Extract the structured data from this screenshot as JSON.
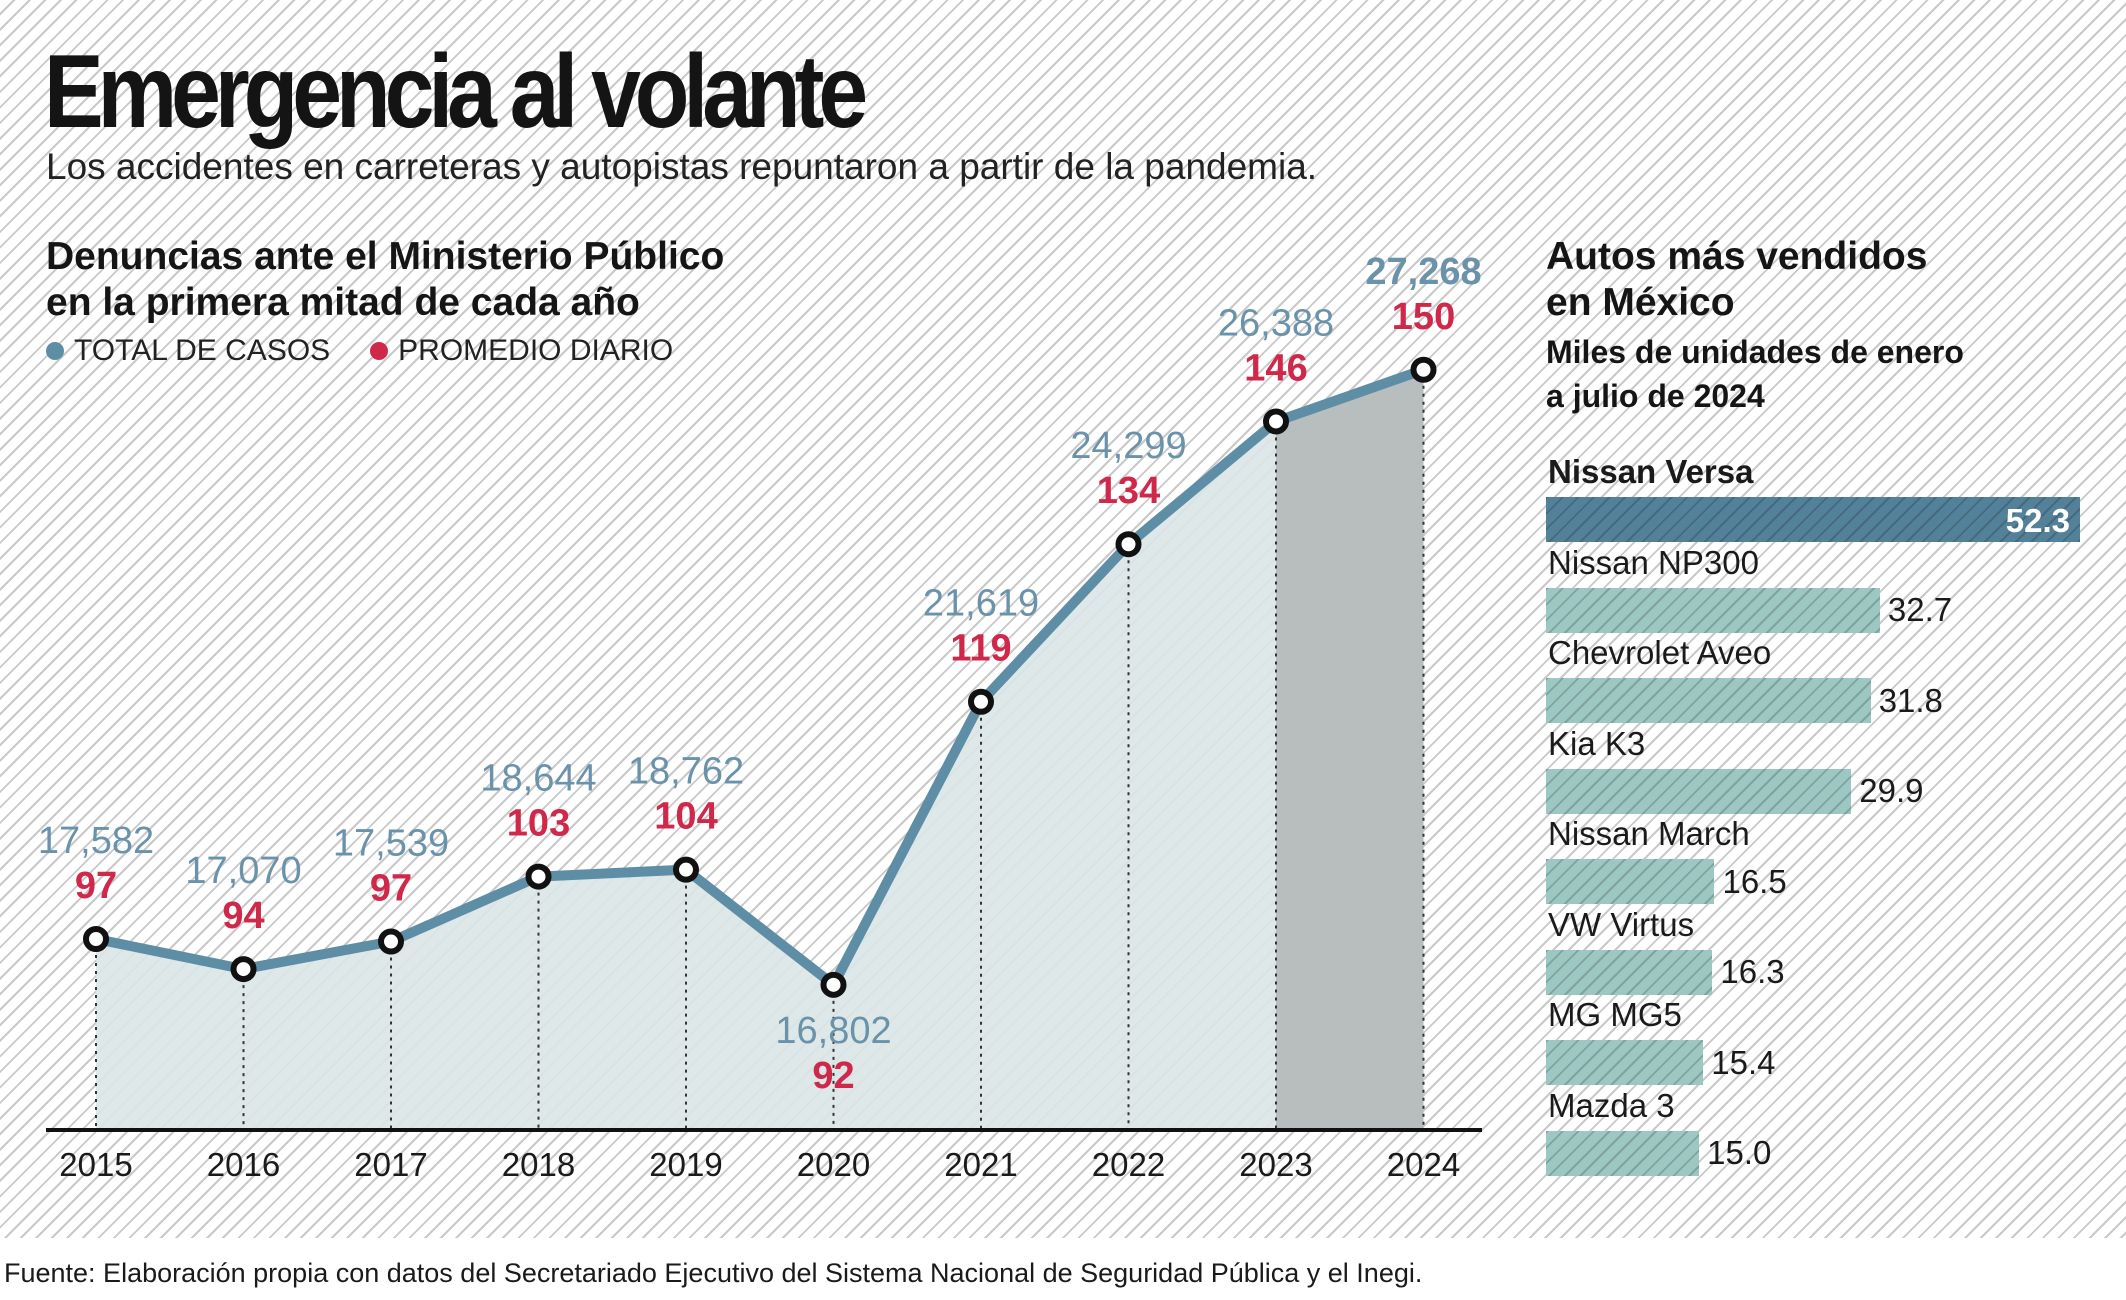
{
  "header": {
    "title": "Emergencia al volante",
    "subtitle": "Los accidentes en carreteras y autopistas repuntaron a partir de la pandemia."
  },
  "line_section": {
    "title_line1": "Denuncias ante el Ministerio Público",
    "title_line2": "en la primera mitad de cada año",
    "legend_total": "TOTAL DE CASOS",
    "legend_daily": "PROMEDIO DIARIO"
  },
  "bar_section": {
    "title_line1": "Autos más vendidos",
    "title_line2": "en México",
    "subtitle_line1": "Miles de unidades de enero",
    "subtitle_line2": "a julio de 2024"
  },
  "footer": {
    "source": "Fuente: Elaboración propia con datos del Secretariado Ejecutivo del Sistema Nacional de Seguridad Pública y el Inegi."
  },
  "colors": {
    "line": "#5e8da6",
    "total_label": "#6a93ab",
    "daily_label": "#d0284a",
    "area_fill": "#dbe6e5",
    "highlight_area": "#b4b9b9",
    "bar_top": "#54819a",
    "bar_other": "#9cc7c2"
  },
  "chart_data": [
    {
      "type": "line",
      "title": "Denuncias ante el Ministerio Público en la primera mitad de cada año",
      "x": [
        "2015",
        "2016",
        "2017",
        "2018",
        "2019",
        "2020",
        "2021",
        "2022",
        "2023",
        "2024"
      ],
      "series": [
        {
          "name": "TOTAL DE CASOS",
          "values": [
            17582,
            17070,
            17539,
            18644,
            18762,
            16802,
            21619,
            24299,
            26388,
            27268
          ],
          "labels": [
            "17,582",
            "17,070",
            "17,539",
            "18,644",
            "18,762",
            "16,802",
            "21,619",
            "24,299",
            "26,388",
            "27,268"
          ]
        },
        {
          "name": "PROMEDIO DIARIO",
          "values": [
            97,
            94,
            97,
            103,
            104,
            92,
            119,
            134,
            146,
            150
          ],
          "labels": [
            "97",
            "94",
            "97",
            "103",
            "104",
            "92",
            "119",
            "134",
            "146",
            "150"
          ]
        }
      ],
      "highlight_range": [
        "2023",
        "2024"
      ]
    },
    {
      "type": "bar",
      "title": "Autos más vendidos en México",
      "ylabel": "Miles de unidades de enero a julio de 2024",
      "categories": [
        "Nissan Versa",
        "Nissan NP300",
        "Chevrolet Aveo",
        "Kia K3",
        "Nissan March",
        "VW Virtus",
        "MG MG5",
        "Mazda 3"
      ],
      "values": [
        52.3,
        32.7,
        31.8,
        29.9,
        16.5,
        16.3,
        15.4,
        15.0
      ],
      "labels": [
        "52.3",
        "32.7",
        "31.8",
        "29.9",
        "16.5",
        "16.3",
        "15.4",
        "15.0"
      ]
    }
  ]
}
